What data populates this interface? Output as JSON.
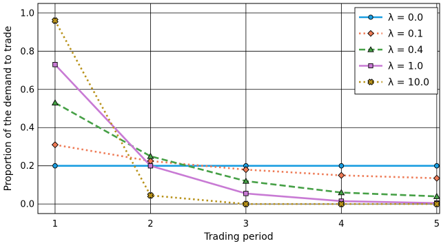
{
  "chart_data": {
    "type": "line",
    "xlabel": "Trading period",
    "ylabel": "Proportion of the demand to trade",
    "x": [
      1,
      2,
      3,
      4,
      5
    ],
    "xticks": [
      "1",
      "2",
      "3",
      "4",
      "5"
    ],
    "yticks": [
      "0.0",
      "0.2",
      "0.4",
      "0.6",
      "0.8",
      "1.0"
    ],
    "xlim": [
      0.82,
      5.03
    ],
    "ylim": [
      -0.05,
      1.05
    ],
    "grid": true,
    "legend_position": "top-right",
    "series": [
      {
        "name": "λ = 0.0",
        "values": [
          0.2,
          0.2,
          0.2,
          0.2,
          0.2
        ],
        "color": "#1a9de0",
        "dash": "solid",
        "marker": "circle"
      },
      {
        "name": "λ = 0.1",
        "values": [
          0.31,
          0.225,
          0.18,
          0.15,
          0.135
        ],
        "color": "#ee7a55",
        "dash": "dotted",
        "marker": "diamond"
      },
      {
        "name": "λ = 0.4",
        "values": [
          0.53,
          0.25,
          0.12,
          0.06,
          0.04
        ],
        "color": "#46a046",
        "dash": "dashed",
        "marker": "triangle"
      },
      {
        "name": "λ = 1.0",
        "values": [
          0.73,
          0.2,
          0.055,
          0.015,
          0.005
        ],
        "color": "#c87ad4",
        "dash": "solid",
        "marker": "square"
      },
      {
        "name": "λ = 10.0",
        "values": [
          0.96,
          0.045,
          0.0,
          0.0,
          0.0
        ],
        "color": "#b8921a",
        "dash": "dotted",
        "marker": "x"
      }
    ]
  }
}
